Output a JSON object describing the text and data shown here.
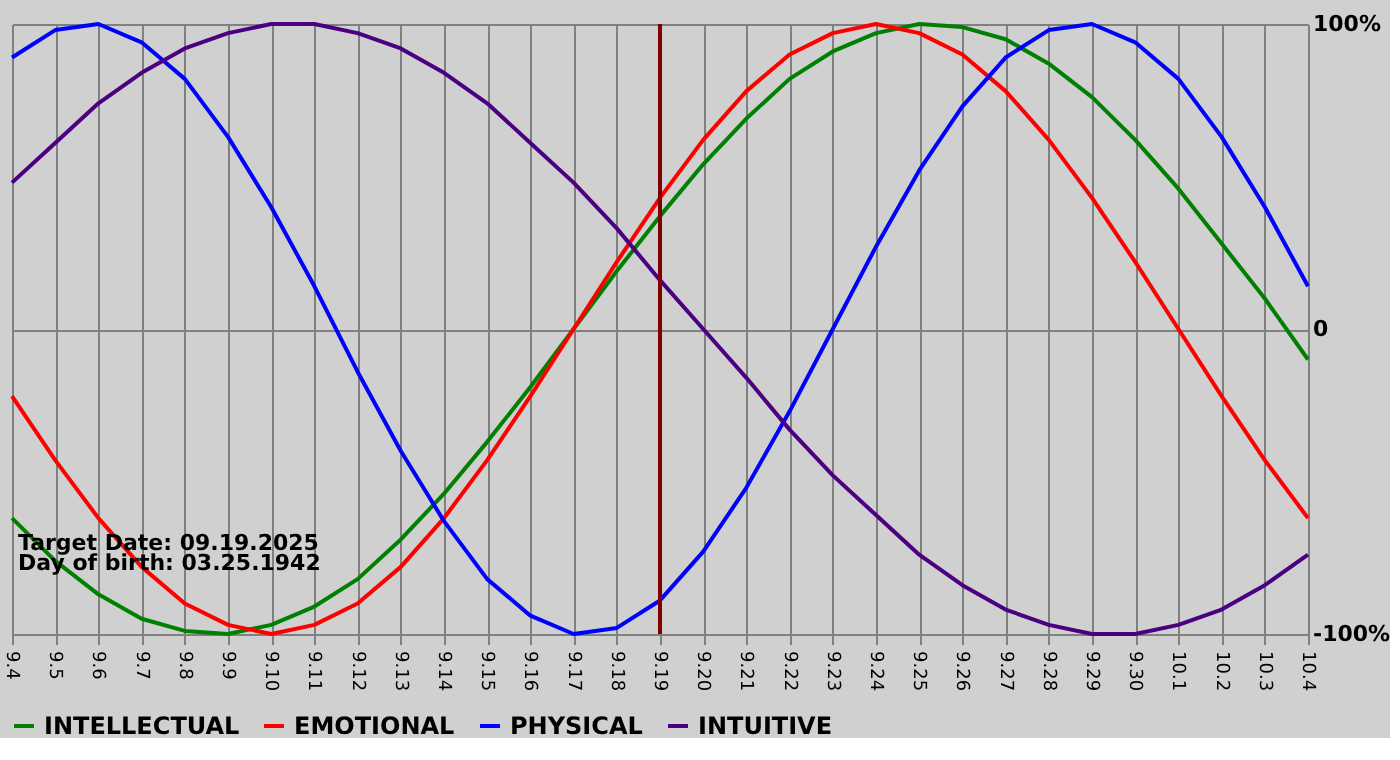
{
  "chart_data": {
    "type": "line",
    "categories": [
      "9.4",
      "9.5",
      "9.6",
      "9.7",
      "9.8",
      "9.9",
      "9.10",
      "9.11",
      "9.12",
      "9.13",
      "9.14",
      "9.15",
      "9.16",
      "9.17",
      "9.18",
      "9.19",
      "9.20",
      "9.21",
      "9.22",
      "9.23",
      "9.24",
      "9.25",
      "9.26",
      "9.27",
      "9.28",
      "9.29",
      "9.30",
      "10.1",
      "10.2",
      "10.3",
      "10.4"
    ],
    "series": [
      {
        "name": "INTELLECTUAL",
        "color": "#008000",
        "values": [
          -62,
          -76,
          -87,
          -95,
          -99,
          -100,
          -97,
          -91,
          -82,
          -69,
          -54,
          -37,
          -19,
          0,
          19,
          37,
          54,
          69,
          82,
          91,
          97,
          100,
          99,
          95,
          87,
          76,
          62,
          46,
          28,
          10,
          -10
        ]
      },
      {
        "name": "EMOTIONAL",
        "color": "#ff0000",
        "values": [
          -22,
          -43,
          -62,
          -78,
          -90,
          -97,
          -100,
          -97,
          -90,
          -78,
          -62,
          -43,
          -22,
          0,
          22,
          43,
          62,
          78,
          90,
          97,
          100,
          97,
          90,
          78,
          62,
          43,
          22,
          0,
          -22,
          -43,
          -62
        ]
      },
      {
        "name": "PHYSICAL",
        "color": "#0000ff",
        "values": [
          89,
          98,
          100,
          94,
          82,
          63,
          40,
          14,
          -14,
          -40,
          -63,
          -82,
          -94,
          -100,
          -98,
          -89,
          -73,
          -52,
          -27,
          0,
          27,
          52,
          73,
          89,
          98,
          100,
          94,
          82,
          63,
          40,
          14
        ]
      },
      {
        "name": "INTUITIVE",
        "color": "#4b0082",
        "values": [
          48,
          61,
          74,
          84,
          92,
          97,
          100,
          100,
          97,
          92,
          84,
          74,
          61,
          48,
          33,
          16,
          0,
          -16,
          -33,
          -48,
          -61,
          -74,
          -84,
          -92,
          -97,
          -100,
          -100,
          -97,
          -92,
          -84,
          -74
        ]
      }
    ],
    "ylim": [
      -100,
      100
    ],
    "yticks": [
      {
        "value": -100,
        "label": "-100%"
      },
      0,
      {
        "value": 100,
        "label": "100%"
      }
    ],
    "ref_lines": [
      {
        "axis": "x",
        "value": "9.19",
        "color": "#800000"
      }
    ],
    "annotations": [
      "Target Date: 09.19.2025",
      "Day of birth: 03.25.1942"
    ],
    "grid": true,
    "legend": "bottom left",
    "marker": "none",
    "line_style": "solid"
  }
}
